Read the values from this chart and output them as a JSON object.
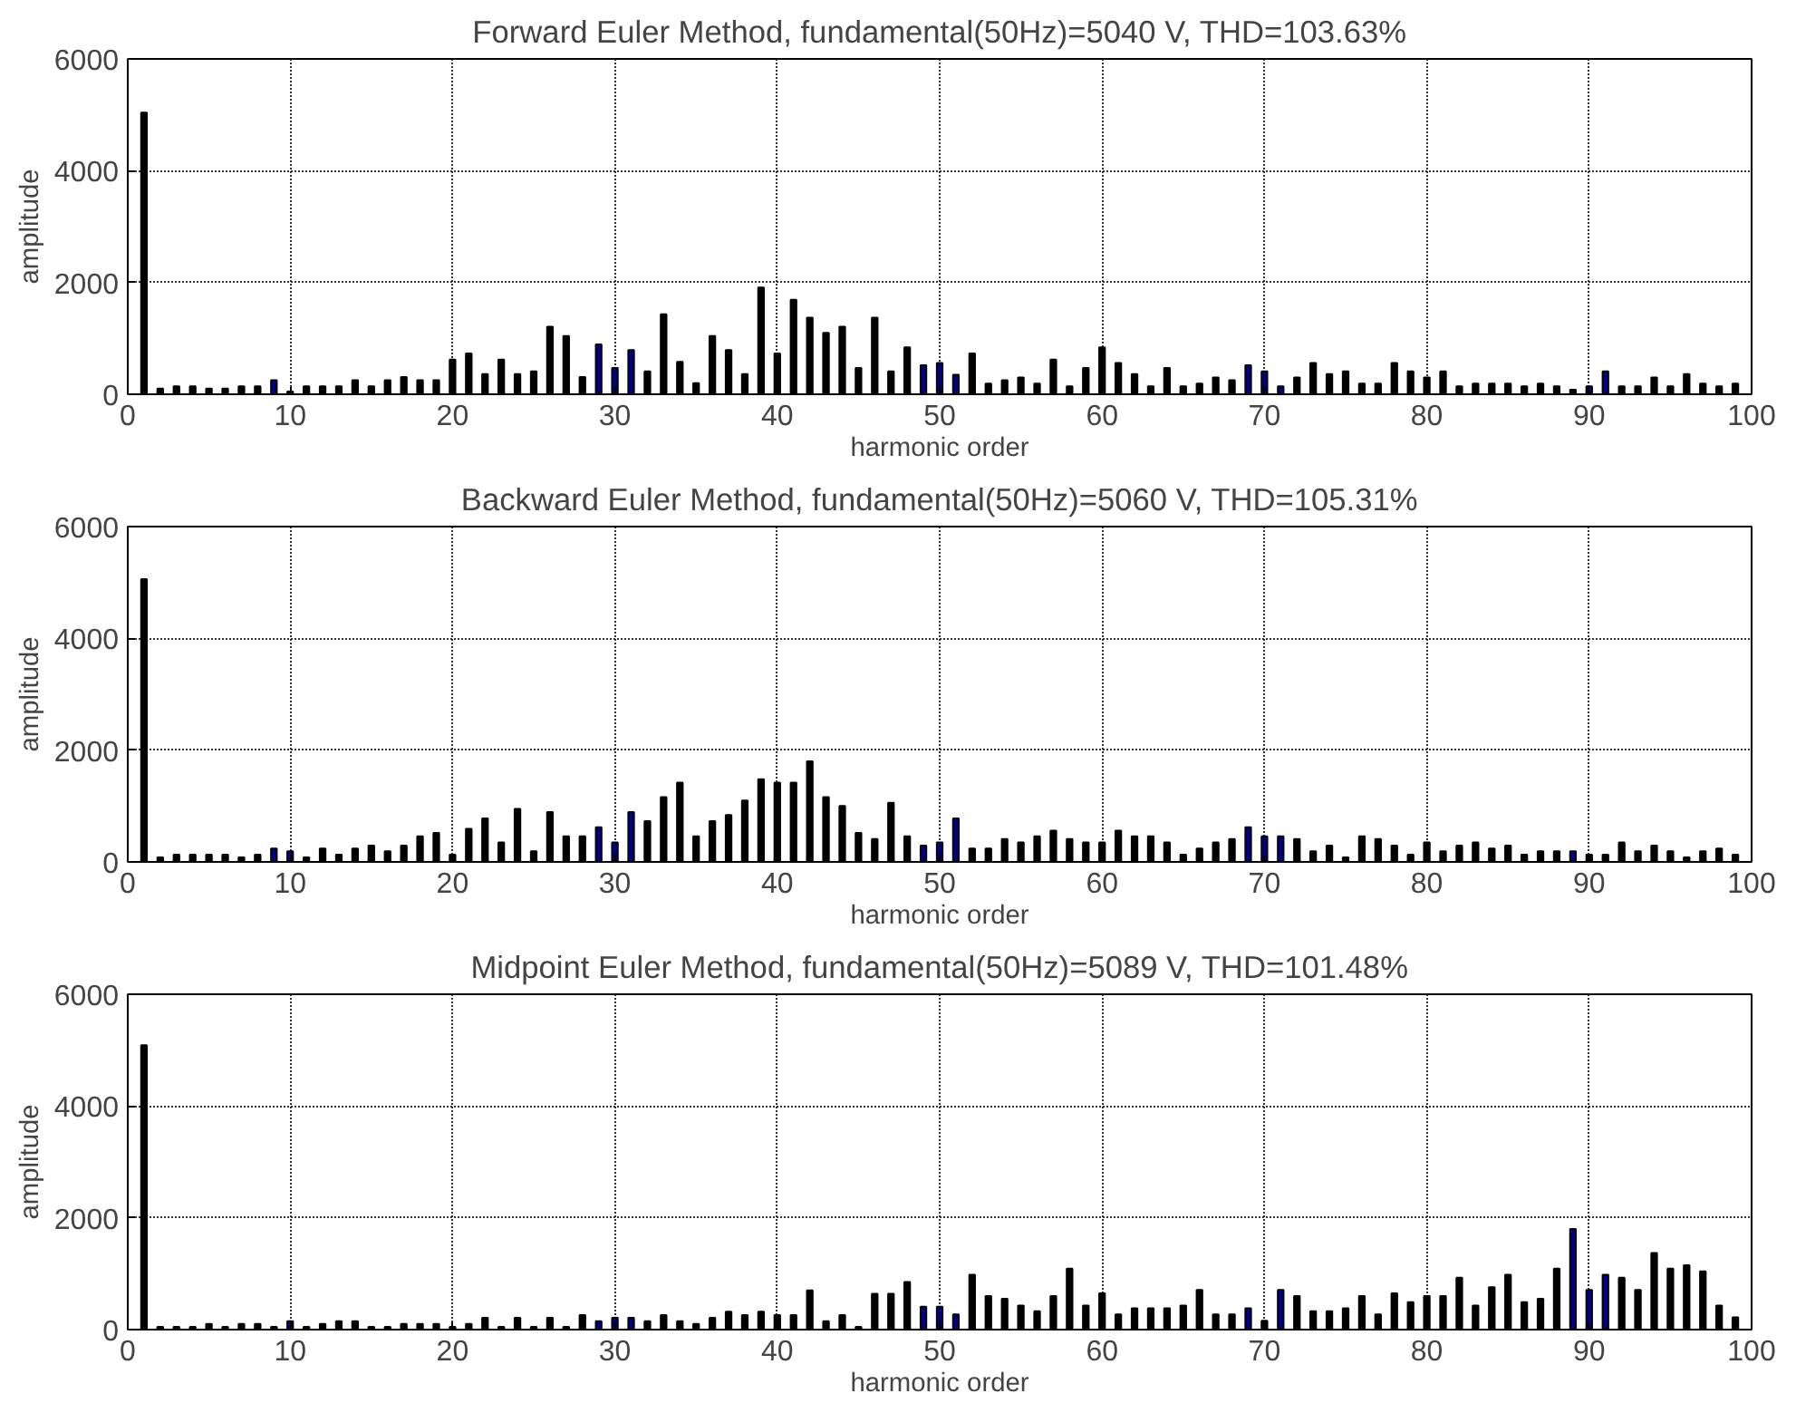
{
  "chart_data": [
    {
      "type": "bar",
      "title": "Forward Euler Method, fundamental(50Hz)=5040 V, THD=103.63%",
      "xlabel": "harmonic order",
      "ylabel": "amplitude",
      "xlim": [
        0,
        100
      ],
      "xticks": [
        0,
        10,
        20,
        30,
        40,
        50,
        60,
        70,
        80,
        90,
        100
      ],
      "ylim": [
        0,
        6000
      ],
      "yticks": [
        0,
        2000,
        4000,
        6000
      ],
      "grid": true,
      "x": [
        1,
        2,
        3,
        4,
        5,
        6,
        7,
        8,
        9,
        10,
        11,
        12,
        13,
        14,
        15,
        16,
        17,
        18,
        19,
        20,
        21,
        22,
        23,
        24,
        25,
        26,
        27,
        28,
        29,
        30,
        31,
        32,
        33,
        34,
        35,
        36,
        37,
        38,
        39,
        40,
        41,
        42,
        43,
        44,
        45,
        46,
        47,
        48,
        49,
        50,
        51,
        52,
        53,
        54,
        55,
        56,
        57,
        58,
        59,
        60,
        61,
        62,
        63,
        64,
        65,
        66,
        67,
        68,
        69,
        70,
        71,
        72,
        73,
        74,
        75,
        76,
        77,
        78,
        79,
        80,
        81,
        82,
        83,
        84,
        85,
        86,
        87,
        88,
        89,
        90,
        91,
        92,
        93,
        94,
        95,
        96,
        97,
        98,
        99
      ],
      "values": [
        5040,
        100,
        140,
        140,
        100,
        100,
        140,
        140,
        250,
        50,
        140,
        140,
        140,
        250,
        140,
        250,
        310,
        250,
        250,
        620,
        730,
        360,
        620,
        360,
        410,
        1210,
        1040,
        310,
        890,
        470,
        790,
        410,
        1430,
        580,
        200,
        1040,
        790,
        360,
        1910,
        730,
        1690,
        1370,
        1100,
        1210,
        470,
        1370,
        410,
        840,
        520,
        560,
        350,
        730,
        190,
        250,
        300,
        190,
        620,
        140,
        470,
        840,
        560,
        360,
        140,
        470,
        140,
        190,
        300,
        250,
        520,
        410,
        140,
        300,
        560,
        360,
        410,
        190,
        190,
        560,
        410,
        300,
        410,
        140,
        190,
        190,
        190,
        140,
        190,
        140,
        80,
        140,
        410,
        140,
        140,
        300,
        140,
        360,
        190,
        140,
        190
      ],
      "colors": [
        "#000000",
        "#000000",
        "#000000",
        "#000000",
        "#000000",
        "#000000",
        "#000000",
        "#000000",
        "#00008b",
        "#000000",
        "#000000",
        "#000000",
        "#000000",
        "#000000",
        "#000000",
        "#000000",
        "#000000",
        "#000000",
        "#000000",
        "#000000",
        "#000000",
        "#000000",
        "#000000",
        "#000000",
        "#000000",
        "#000000",
        "#000000",
        "#000000",
        "#00008b",
        "#00008b",
        "#00008b",
        "#000000",
        "#000000",
        "#000000",
        "#000000",
        "#000000",
        "#000000",
        "#000000",
        "#000000",
        "#000000",
        "#000000",
        "#000000",
        "#000000",
        "#000000",
        "#000000",
        "#000000",
        "#000000",
        "#000000",
        "#00008b",
        "#00008b",
        "#00008b",
        "#000000",
        "#000000",
        "#000000",
        "#000000",
        "#000000",
        "#000000",
        "#000000",
        "#000000",
        "#000000",
        "#000000",
        "#000000",
        "#000000",
        "#000000",
        "#000000",
        "#000000",
        "#000000",
        "#000000",
        "#00008b",
        "#00008b",
        "#00008b",
        "#000000",
        "#000000",
        "#000000",
        "#000000",
        "#000000",
        "#000000",
        "#000000",
        "#000000",
        "#000000",
        "#000000",
        "#000000",
        "#000000",
        "#000000",
        "#000000",
        "#000000",
        "#000000",
        "#000000",
        "#000000",
        "#00008b",
        "#00008b",
        "#000000",
        "#000000",
        "#000000",
        "#000000",
        "#000000",
        "#000000",
        "#000000",
        "#000000"
      ]
    },
    {
      "type": "bar",
      "title": "Backward Euler Method, fundamental(50Hz)=5060 V, THD=105.31%",
      "xlabel": "harmonic order",
      "ylabel": "amplitude",
      "xlim": [
        0,
        100
      ],
      "xticks": [
        0,
        10,
        20,
        30,
        40,
        50,
        60,
        70,
        80,
        90,
        100
      ],
      "ylim": [
        0,
        6000
      ],
      "yticks": [
        0,
        2000,
        4000,
        6000
      ],
      "grid": true,
      "x": [
        1,
        2,
        3,
        4,
        5,
        6,
        7,
        8,
        9,
        10,
        11,
        12,
        13,
        14,
        15,
        16,
        17,
        18,
        19,
        20,
        21,
        22,
        23,
        24,
        25,
        26,
        27,
        28,
        29,
        30,
        31,
        32,
        33,
        34,
        35,
        36,
        37,
        38,
        39,
        40,
        41,
        42,
        43,
        44,
        45,
        46,
        47,
        48,
        49,
        50,
        51,
        52,
        53,
        54,
        55,
        56,
        57,
        58,
        59,
        60,
        61,
        62,
        63,
        64,
        65,
        66,
        67,
        68,
        69,
        70,
        71,
        72,
        73,
        74,
        75,
        76,
        77,
        78,
        79,
        80,
        81,
        82,
        83,
        84,
        85,
        86,
        87,
        88,
        89,
        90,
        91,
        92,
        93,
        94,
        95,
        96,
        97,
        98,
        99
      ],
      "values": [
        5060,
        80,
        130,
        130,
        130,
        130,
        80,
        130,
        240,
        190,
        80,
        240,
        130,
        240,
        290,
        190,
        290,
        460,
        520,
        130,
        590,
        780,
        350,
        950,
        190,
        890,
        460,
        460,
        620,
        350,
        890,
        730,
        1160,
        1420,
        460,
        730,
        840,
        1100,
        1480,
        1420,
        1420,
        1800,
        1160,
        1000,
        520,
        410,
        1060,
        460,
        290,
        350,
        780,
        240,
        240,
        410,
        350,
        460,
        560,
        410,
        350,
        350,
        560,
        460,
        460,
        350,
        130,
        240,
        350,
        410,
        620,
        460,
        460,
        410,
        190,
        290,
        80,
        460,
        410,
        290,
        130,
        350,
        190,
        290,
        350,
        240,
        290,
        130,
        190,
        190,
        190,
        130,
        130,
        350,
        190,
        290,
        190,
        80,
        190,
        240,
        130
      ],
      "colors": [
        "#000000",
        "#000000",
        "#000000",
        "#000000",
        "#000000",
        "#000000",
        "#000000",
        "#000000",
        "#00008b",
        "#00008b",
        "#000000",
        "#000000",
        "#000000",
        "#000000",
        "#000000",
        "#000000",
        "#000000",
        "#000000",
        "#000000",
        "#000000",
        "#000000",
        "#000000",
        "#000000",
        "#000000",
        "#000000",
        "#000000",
        "#000000",
        "#000000",
        "#00008b",
        "#00008b",
        "#00008b",
        "#000000",
        "#000000",
        "#000000",
        "#000000",
        "#000000",
        "#000000",
        "#000000",
        "#000000",
        "#000000",
        "#000000",
        "#000000",
        "#000000",
        "#000000",
        "#000000",
        "#000000",
        "#000000",
        "#000000",
        "#00008b",
        "#00008b",
        "#00008b",
        "#000000",
        "#000000",
        "#000000",
        "#000000",
        "#000000",
        "#000000",
        "#000000",
        "#000000",
        "#000000",
        "#000000",
        "#000000",
        "#000000",
        "#000000",
        "#000000",
        "#000000",
        "#000000",
        "#000000",
        "#00008b",
        "#00008b",
        "#00008b",
        "#000000",
        "#000000",
        "#000000",
        "#000000",
        "#000000",
        "#000000",
        "#000000",
        "#000000",
        "#000000",
        "#000000",
        "#000000",
        "#000000",
        "#000000",
        "#000000",
        "#000000",
        "#000000",
        "#000000",
        "#00008b",
        "#000000",
        "#000000",
        "#000000",
        "#000000",
        "#000000",
        "#000000",
        "#000000",
        "#000000",
        "#000000",
        "#000000"
      ]
    },
    {
      "type": "bar",
      "title": "Midpoint Euler Method, fundamental(50Hz)=5089 V, THD=101.48%",
      "xlabel": "harmonic order",
      "ylabel": "amplitude",
      "xlim": [
        0,
        100
      ],
      "xticks": [
        0,
        10,
        20,
        30,
        40,
        50,
        60,
        70,
        80,
        90,
        100
      ],
      "ylim": [
        0,
        6000
      ],
      "yticks": [
        0,
        2000,
        4000,
        6000
      ],
      "grid": true,
      "x": [
        1,
        2,
        3,
        4,
        5,
        6,
        7,
        8,
        9,
        10,
        11,
        12,
        13,
        14,
        15,
        16,
        17,
        18,
        19,
        20,
        21,
        22,
        23,
        24,
        25,
        26,
        27,
        28,
        29,
        30,
        31,
        32,
        33,
        34,
        35,
        36,
        37,
        38,
        39,
        40,
        41,
        42,
        43,
        44,
        45,
        46,
        47,
        48,
        49,
        50,
        51,
        52,
        53,
        54,
        55,
        56,
        57,
        58,
        59,
        60,
        61,
        62,
        63,
        64,
        65,
        66,
        67,
        68,
        69,
        70,
        71,
        72,
        73,
        74,
        75,
        76,
        77,
        78,
        79,
        80,
        81,
        82,
        83,
        84,
        85,
        86,
        87,
        88,
        89,
        90,
        91,
        92,
        93,
        94,
        95,
        96,
        97,
        98,
        99
      ],
      "values": [
        5089,
        50,
        50,
        50,
        100,
        50,
        100,
        100,
        50,
        150,
        50,
        100,
        150,
        150,
        50,
        50,
        100,
        100,
        100,
        50,
        100,
        210,
        50,
        210,
        50,
        210,
        50,
        260,
        150,
        210,
        210,
        150,
        260,
        150,
        100,
        210,
        320,
        260,
        320,
        260,
        260,
        700,
        150,
        260,
        50,
        640,
        640,
        850,
        410,
        410,
        270,
        980,
        600,
        550,
        430,
        330,
        600,
        1090,
        430,
        650,
        270,
        380,
        380,
        380,
        430,
        710,
        270,
        270,
        380,
        160,
        710,
        600,
        330,
        330,
        380,
        600,
        270,
        650,
        490,
        600,
        600,
        930,
        430,
        760,
        980,
        490,
        550,
        1090,
        1800,
        710,
        980,
        930,
        710,
        1370,
        1090,
        1150,
        1040,
        430,
        220
      ],
      "colors": [
        "#000000",
        "#000000",
        "#000000",
        "#000000",
        "#000000",
        "#000000",
        "#000000",
        "#000000",
        "#000000",
        "#00008b",
        "#000000",
        "#000000",
        "#000000",
        "#000000",
        "#000000",
        "#000000",
        "#000000",
        "#000000",
        "#000000",
        "#000000",
        "#000000",
        "#000000",
        "#000000",
        "#000000",
        "#000000",
        "#000000",
        "#000000",
        "#000000",
        "#00008b",
        "#00008b",
        "#00008b",
        "#000000",
        "#000000",
        "#000000",
        "#000000",
        "#000000",
        "#000000",
        "#000000",
        "#000000",
        "#000000",
        "#000000",
        "#000000",
        "#000000",
        "#000000",
        "#000000",
        "#000000",
        "#000000",
        "#000000",
        "#00008b",
        "#00008b",
        "#00008b",
        "#000000",
        "#000000",
        "#000000",
        "#000000",
        "#000000",
        "#000000",
        "#000000",
        "#000000",
        "#000000",
        "#000000",
        "#000000",
        "#000000",
        "#000000",
        "#000000",
        "#000000",
        "#000000",
        "#000000",
        "#00008b",
        "#000000",
        "#00008b",
        "#000000",
        "#000000",
        "#000000",
        "#000000",
        "#000000",
        "#000000",
        "#000000",
        "#000000",
        "#000000",
        "#000000",
        "#000000",
        "#000000",
        "#000000",
        "#000000",
        "#000000",
        "#000000",
        "#000000",
        "#00008b",
        "#00008b",
        "#00008b",
        "#000000",
        "#000000",
        "#000000",
        "#000000",
        "#000000",
        "#000000",
        "#000000",
        "#000000"
      ]
    }
  ]
}
